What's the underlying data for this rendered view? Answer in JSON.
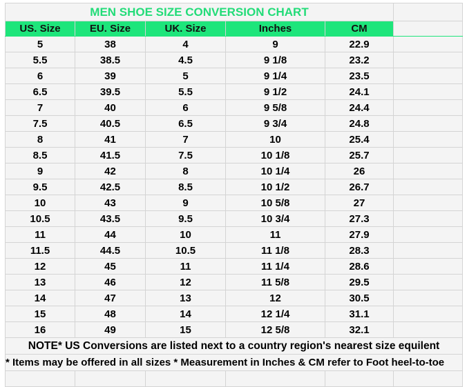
{
  "title": "MEN SHOE SIZE CONVERSION CHART",
  "columns": [
    "US. Size",
    "EU. Size",
    "UK. Size",
    "Inches",
    "CM"
  ],
  "rows": [
    [
      "5",
      "38",
      "4",
      "9",
      "22.9"
    ],
    [
      "5.5",
      "38.5",
      "4.5",
      "9 1/8",
      "23.2"
    ],
    [
      "6",
      "39",
      "5",
      "9 1/4",
      "23.5"
    ],
    [
      "6.5",
      "39.5",
      "5.5",
      "9 1/2",
      "24.1"
    ],
    [
      "7",
      "40",
      "6",
      "9 5/8",
      "24.4"
    ],
    [
      "7.5",
      "40.5",
      "6.5",
      "9 3/4",
      "24.8"
    ],
    [
      "8",
      "41",
      "7",
      "10",
      "25.4"
    ],
    [
      "8.5",
      "41.5",
      "7.5",
      "10 1/8",
      "25.7"
    ],
    [
      "9",
      "42",
      "8",
      "10 1/4",
      "26"
    ],
    [
      "9.5",
      "42.5",
      "8.5",
      "10 1/2",
      "26.7"
    ],
    [
      "10",
      "43",
      "9",
      "10 5/8",
      "27"
    ],
    [
      "10.5",
      "43.5",
      "9.5",
      "10 3/4",
      "27.3"
    ],
    [
      "11",
      "44",
      "10",
      "11",
      "27.9"
    ],
    [
      "11.5",
      "44.5",
      "10.5",
      "11 1/8",
      "28.3"
    ],
    [
      "12",
      "45",
      "11",
      "11 1/4",
      "28.6"
    ],
    [
      "13",
      "46",
      "12",
      "11 5/8",
      "29.5"
    ],
    [
      "14",
      "47",
      "13",
      "12",
      "30.5"
    ],
    [
      "15",
      "48",
      "14",
      "12 1/4",
      "31.1"
    ],
    [
      "16",
      "49",
      "15",
      "12 5/8",
      "32.1"
    ]
  ],
  "note1": "NOTE* US Conversions are listed next to a country region's nearest size equilent",
  "note2": "* Items may be offered in all sizes * Measurement in Inches & CM refer to Foot heel-to-toe",
  "colors": {
    "header_bg": "#1ee57b",
    "title_text": "#22dc78",
    "grid": "#d4d4d4"
  }
}
